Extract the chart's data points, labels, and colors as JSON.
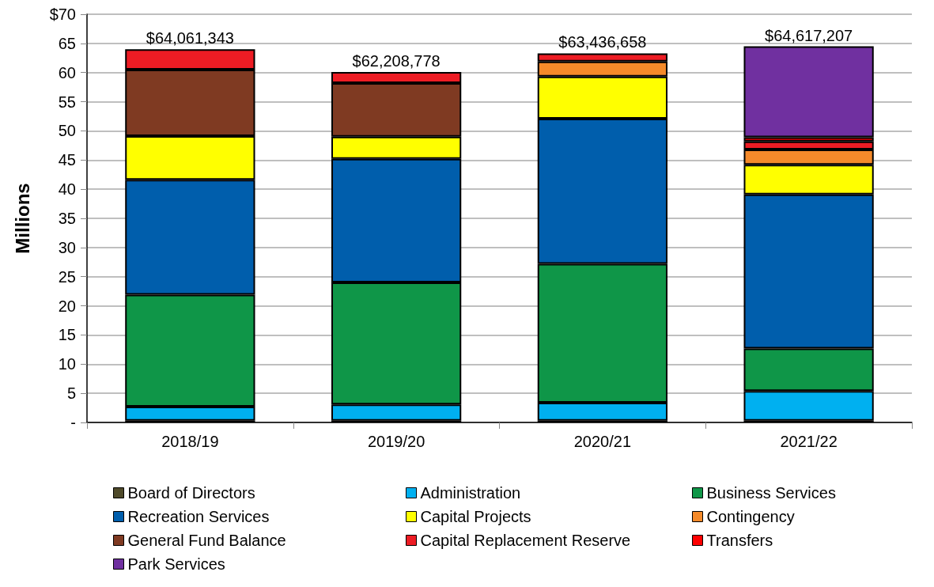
{
  "chart_data": {
    "type": "bar",
    "stacked": true,
    "ylabel": "Millions",
    "categories": [
      "2018/19",
      "2019/20",
      "2020/21",
      "2021/22"
    ],
    "series": [
      {
        "name": "Board of Directors",
        "color": "#4f4a2a",
        "values": [
          0.3,
          0.3,
          0.3,
          0.3
        ]
      },
      {
        "name": "Administration",
        "color": "#00b0f0",
        "values": [
          2.4,
          2.8,
          3.1,
          5.1
        ]
      },
      {
        "name": "Business Services",
        "color": "#0f9648",
        "values": [
          19.2,
          20.9,
          23.8,
          7.3
        ]
      },
      {
        "name": "Recreation Services",
        "color": "#005eac",
        "values": [
          19.7,
          21.2,
          24.9,
          26.4
        ]
      },
      {
        "name": "Capital Projects",
        "color": "#ffff00",
        "values": [
          7.5,
          3.8,
          7.2,
          5.1
        ]
      },
      {
        "name": "Contingency",
        "color": "#f58a2a",
        "values": [
          null,
          null,
          2.6,
          2.6
        ]
      },
      {
        "name": "General Fund Balance",
        "color": "#7f3a22",
        "values": [
          11.4,
          9.2,
          null,
          null
        ]
      },
      {
        "name": "Capital Replacement Reserve",
        "color": "#ed1c24",
        "values": [
          3.5,
          1.9,
          1.4,
          1.4
        ]
      },
      {
        "name": "Transfers",
        "color": "#ff0000",
        "values": [
          null,
          null,
          null,
          0.7
        ]
      },
      {
        "name": "Park Services",
        "color": "#7030a0",
        "values": [
          null,
          null,
          null,
          15.6
        ]
      }
    ],
    "annotations": [
      {
        "text": "$64,061,343",
        "x": "2018/19",
        "y": 64.0
      },
      {
        "text": "$62,208,778",
        "x": "2019/20",
        "y": 60.1
      },
      {
        "text": "$63,436,658",
        "x": "2020/21",
        "y": 63.3
      },
      {
        "text": "$64,617,207",
        "x": "2021/22",
        "y": 64.5
      }
    ],
    "ylim": [
      0,
      70
    ],
    "yticks": [
      {
        "value": 0,
        "label": "-"
      },
      5,
      10,
      15,
      20,
      25,
      30,
      35,
      40,
      45,
      50,
      55,
      60,
      65,
      {
        "value": 70,
        "label": "$70"
      }
    ],
    "grid": "y",
    "legend": "bottom"
  }
}
